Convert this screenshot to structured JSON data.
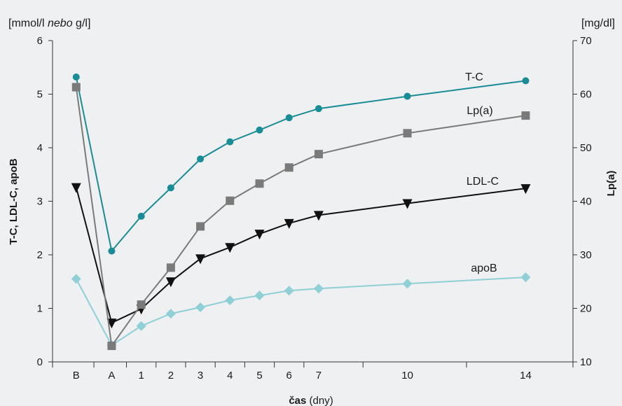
{
  "chart_data": {
    "type": "line",
    "categories": [
      "B",
      "A",
      "1",
      "2",
      "3",
      "4",
      "5",
      "6",
      "7",
      "10",
      "14"
    ],
    "x": [
      -1.2,
      0,
      1,
      2,
      3,
      4,
      5,
      6,
      7,
      10,
      14
    ],
    "y_left": {
      "label": "T-C, LDL-C, apoB",
      "unit_prefix": "[mmol/l ",
      "unit_italic": "nebo",
      "unit_suffix": " g/l]",
      "ylim": [
        0,
        6
      ],
      "ticks": [
        "0",
        "1",
        "2",
        "3",
        "4",
        "5",
        "6"
      ]
    },
    "y_right": {
      "label": "Lp(a)",
      "unit": "[mg/dl]",
      "ylim": [
        10,
        70
      ],
      "ticks": [
        "10",
        "20",
        "30",
        "40",
        "50",
        "60",
        "70"
      ]
    },
    "x_axis": {
      "label_bold": "čas",
      "label_rest": " (dny)"
    },
    "series": [
      {
        "name": "T-C",
        "axis": "left",
        "color": "#1a8c96",
        "marker": "circle",
        "values": [
          5.32,
          2.07,
          2.72,
          3.25,
          3.79,
          4.11,
          4.33,
          4.56,
          4.73,
          4.96,
          5.25
        ]
      },
      {
        "name": "Lp(a)",
        "axis": "right",
        "color": "#7a7a7a",
        "marker": "square",
        "values": [
          61.3,
          13.0,
          20.7,
          27.6,
          35.3,
          40.1,
          43.3,
          46.3,
          48.8,
          52.7,
          56.0
        ]
      },
      {
        "name": "LDL-C",
        "axis": "left",
        "color": "#111111",
        "marker": "triangle-down",
        "values": [
          3.26,
          0.73,
          0.99,
          1.5,
          1.93,
          2.14,
          2.39,
          2.59,
          2.74,
          2.96,
          3.24
        ]
      },
      {
        "name": "apoB",
        "axis": "left",
        "color": "#8fcfd6",
        "marker": "diamond",
        "values": [
          1.55,
          0.31,
          0.67,
          0.9,
          1.02,
          1.15,
          1.24,
          1.33,
          1.37,
          1.46,
          1.58
        ]
      }
    ]
  }
}
